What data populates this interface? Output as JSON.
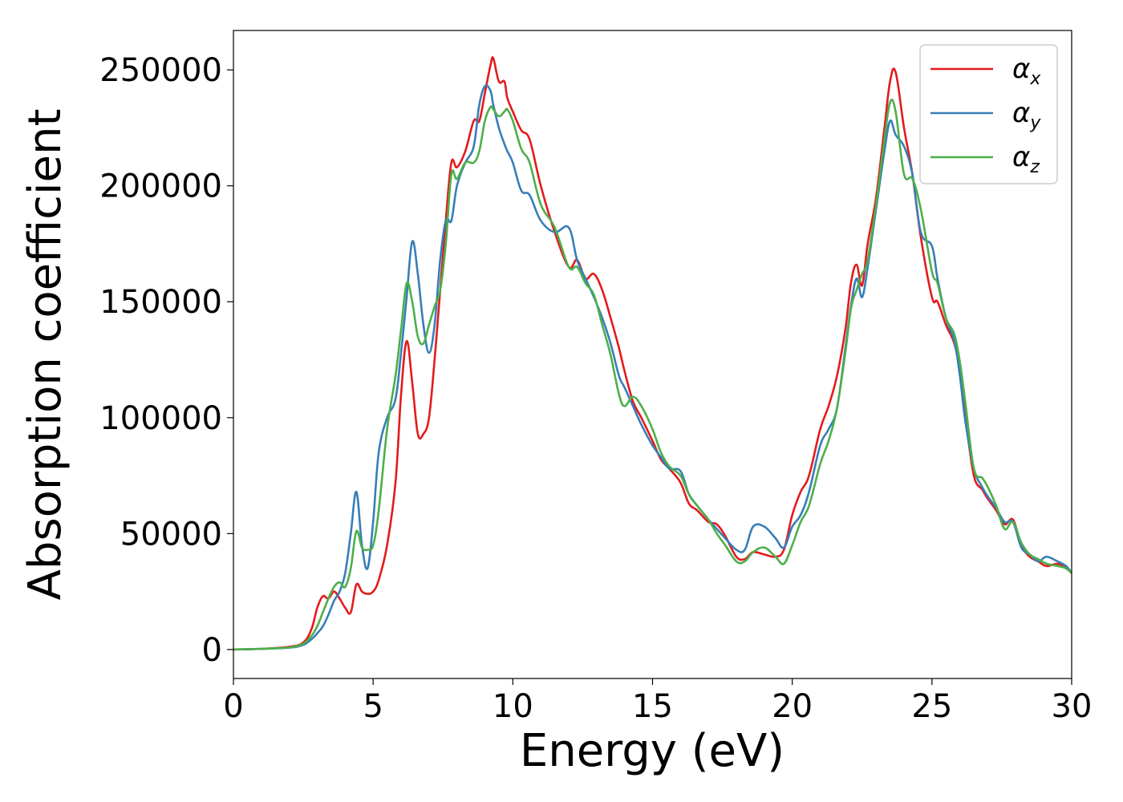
{
  "chart_data": {
    "type": "line",
    "xlabel": "Energy (eV)",
    "ylabel": "Absorption coefficient",
    "xlim": [
      0,
      30
    ],
    "ylim": [
      -12500,
      267000
    ],
    "xticks": [
      0,
      5,
      10,
      15,
      20,
      25,
      30
    ],
    "yticks": [
      0,
      50000,
      100000,
      150000,
      200000,
      250000
    ],
    "xtick_labels": [
      "0",
      "5",
      "10",
      "15",
      "20",
      "25",
      "30"
    ],
    "ytick_labels": [
      "0",
      "50000",
      "100000",
      "150000",
      "200000",
      "250000"
    ],
    "grid": false,
    "legend_position": "top-right",
    "series": [
      {
        "name": "αx",
        "symbol": "α",
        "subscript": "x",
        "color": "#e41a1c",
        "x": [
          0,
          1,
          2,
          2.5,
          2.8,
          3.0,
          3.2,
          3.4,
          3.6,
          3.8,
          4.0,
          4.2,
          4.4,
          4.6,
          4.8,
          5.0,
          5.2,
          5.5,
          5.8,
          6.0,
          6.2,
          6.4,
          6.6,
          6.8,
          7.0,
          7.2,
          7.4,
          7.6,
          7.8,
          8.0,
          8.3,
          8.6,
          8.8,
          9.0,
          9.2,
          9.3,
          9.5,
          9.7,
          9.8,
          10.0,
          10.3,
          10.6,
          11.0,
          11.5,
          12.0,
          12.3,
          12.6,
          12.9,
          13.2,
          13.5,
          13.8,
          14.0,
          14.3,
          14.6,
          15.0,
          15.3,
          15.6,
          16.0,
          16.3,
          16.6,
          17.0,
          17.3,
          17.6,
          18.0,
          18.3,
          18.6,
          19.0,
          19.4,
          19.7,
          20.0,
          20.3,
          20.6,
          21.0,
          21.3,
          21.6,
          21.9,
          22.1,
          22.3,
          22.5,
          22.7,
          23.0,
          23.3,
          23.5,
          23.7,
          24.0,
          24.3,
          24.6,
          25.0,
          25.2,
          25.5,
          25.8,
          26.0,
          26.2,
          26.5,
          26.8,
          27.0,
          27.3,
          27.6,
          27.9,
          28.2,
          28.5,
          28.8,
          29.1,
          29.5,
          29.8,
          30.0
        ],
        "y": [
          0,
          300,
          1200,
          3000,
          9000,
          18000,
          23000,
          22000,
          25000,
          22000,
          18000,
          16000,
          28000,
          25000,
          24000,
          25000,
          30000,
          45000,
          72000,
          110000,
          133000,
          115000,
          93000,
          93000,
          100000,
          125000,
          155000,
          185000,
          210000,
          208000,
          215000,
          228000,
          228000,
          240000,
          252000,
          255000,
          245000,
          245000,
          238000,
          232000,
          224000,
          220000,
          200000,
          180000,
          165000,
          168000,
          160000,
          162000,
          155000,
          143000,
          130000,
          120000,
          107000,
          100000,
          90000,
          82000,
          78000,
          72000,
          63000,
          60000,
          55000,
          54000,
          49000,
          40000,
          39000,
          42000,
          41000,
          40000,
          43000,
          58000,
          68000,
          75000,
          95000,
          105000,
          118000,
          138000,
          158000,
          166000,
          157000,
          175000,
          195000,
          225000,
          245000,
          249000,
          225000,
          205000,
          178000,
          152000,
          150000,
          140000,
          132000,
          120000,
          100000,
          75000,
          69000,
          65000,
          60000,
          54000,
          56000,
          45000,
          40000,
          38000,
          36000,
          37000,
          35000,
          33000
        ]
      },
      {
        "name": "αy",
        "symbol": "α",
        "subscript": "y",
        "color": "#377eb8",
        "x": [
          0,
          1,
          2,
          2.5,
          2.8,
          3.0,
          3.2,
          3.4,
          3.6,
          3.8,
          4.0,
          4.2,
          4.4,
          4.6,
          4.8,
          5.0,
          5.2,
          5.5,
          5.8,
          6.0,
          6.2,
          6.4,
          6.6,
          6.8,
          7.0,
          7.2,
          7.4,
          7.6,
          7.8,
          8.0,
          8.3,
          8.6,
          8.8,
          9.0,
          9.2,
          9.3,
          9.5,
          9.7,
          9.8,
          10.0,
          10.3,
          10.6,
          11.0,
          11.5,
          12.0,
          12.3,
          12.6,
          12.9,
          13.2,
          13.5,
          13.8,
          14.0,
          14.3,
          14.6,
          15.0,
          15.3,
          15.6,
          16.0,
          16.3,
          16.6,
          17.0,
          17.3,
          17.6,
          18.0,
          18.3,
          18.6,
          19.0,
          19.4,
          19.7,
          20.0,
          20.3,
          20.6,
          21.0,
          21.3,
          21.6,
          21.9,
          22.1,
          22.3,
          22.5,
          22.7,
          23.0,
          23.3,
          23.5,
          23.7,
          24.0,
          24.3,
          24.6,
          25.0,
          25.2,
          25.5,
          25.8,
          26.0,
          26.2,
          26.5,
          26.8,
          27.0,
          27.3,
          27.6,
          27.9,
          28.2,
          28.5,
          28.8,
          29.1,
          29.5,
          29.8,
          30.0
        ],
        "y": [
          0,
          300,
          800,
          2000,
          4500,
          7000,
          10000,
          15000,
          21000,
          25000,
          33000,
          50000,
          68000,
          45000,
          35000,
          55000,
          85000,
          100000,
          108000,
          128000,
          152000,
          176000,
          162000,
          140000,
          128000,
          140000,
          168000,
          185000,
          185000,
          200000,
          210000,
          217000,
          235000,
          243000,
          241000,
          235000,
          225000,
          218000,
          215000,
          210000,
          198000,
          196000,
          185000,
          180000,
          182000,
          168000,
          160000,
          152000,
          143000,
          132000,
          118000,
          113000,
          105000,
          97000,
          88000,
          83000,
          78000,
          77000,
          67000,
          62000,
          56000,
          52000,
          48000,
          43000,
          43000,
          53000,
          53000,
          48000,
          44000,
          53000,
          58000,
          68000,
          88000,
          95000,
          104000,
          130000,
          148000,
          160000,
          152000,
          165000,
          190000,
          215000,
          228000,
          222000,
          217000,
          205000,
          180000,
          174000,
          160000,
          143000,
          133000,
          118000,
          98000,
          78000,
          70000,
          66000,
          61000,
          55000,
          55000,
          44000,
          41000,
          38000,
          40000,
          38000,
          36000,
          33000
        ]
      },
      {
        "name": "αz",
        "symbol": "α",
        "subscript": "z",
        "color": "#4daf4a",
        "x": [
          0,
          1,
          2,
          2.5,
          2.8,
          3.0,
          3.2,
          3.4,
          3.6,
          3.8,
          4.0,
          4.2,
          4.4,
          4.6,
          4.8,
          5.0,
          5.2,
          5.5,
          5.8,
          6.0,
          6.2,
          6.4,
          6.6,
          6.8,
          7.0,
          7.2,
          7.4,
          7.6,
          7.8,
          8.0,
          8.3,
          8.6,
          8.8,
          9.0,
          9.2,
          9.3,
          9.5,
          9.7,
          9.8,
          10.0,
          10.3,
          10.6,
          11.0,
          11.5,
          12.0,
          12.3,
          12.6,
          12.9,
          13.2,
          13.5,
          13.8,
          14.0,
          14.3,
          14.6,
          15.0,
          15.3,
          15.6,
          16.0,
          16.3,
          16.6,
          17.0,
          17.3,
          17.6,
          18.0,
          18.3,
          18.6,
          19.0,
          19.4,
          19.7,
          20.0,
          20.3,
          20.6,
          21.0,
          21.3,
          21.6,
          21.9,
          22.1,
          22.3,
          22.5,
          22.7,
          23.0,
          23.3,
          23.5,
          23.7,
          24.0,
          24.3,
          24.6,
          25.0,
          25.2,
          25.5,
          25.8,
          26.0,
          26.2,
          26.5,
          26.8,
          27.0,
          27.3,
          27.6,
          27.9,
          28.2,
          28.5,
          28.8,
          29.1,
          29.5,
          29.8,
          30.0
        ],
        "y": [
          0,
          300,
          900,
          2500,
          6000,
          10000,
          16000,
          22000,
          27000,
          29000,
          27000,
          35000,
          51000,
          44000,
          43000,
          45000,
          60000,
          95000,
          118000,
          138000,
          158000,
          150000,
          135000,
          132000,
          140000,
          148000,
          155000,
          175000,
          205000,
          203000,
          210000,
          210000,
          215000,
          228000,
          234000,
          233000,
          230000,
          232000,
          233000,
          228000,
          216000,
          210000,
          192000,
          182000,
          165000,
          165000,
          158000,
          153000,
          140000,
          127000,
          110000,
          105000,
          109000,
          105000,
          95000,
          85000,
          79000,
          75000,
          67000,
          62000,
          56000,
          50000,
          45000,
          38000,
          38000,
          42000,
          44000,
          40000,
          37000,
          45000,
          55000,
          62000,
          80000,
          90000,
          104000,
          128000,
          147000,
          155000,
          162000,
          168000,
          192000,
          220000,
          236000,
          232000,
          205000,
          203000,
          190000,
          163000,
          158000,
          143000,
          136000,
          124000,
          106000,
          78000,
          74000,
          70000,
          62000,
          52000,
          55000,
          46000,
          41000,
          39000,
          37000,
          36000,
          35000,
          33000
        ]
      }
    ]
  }
}
